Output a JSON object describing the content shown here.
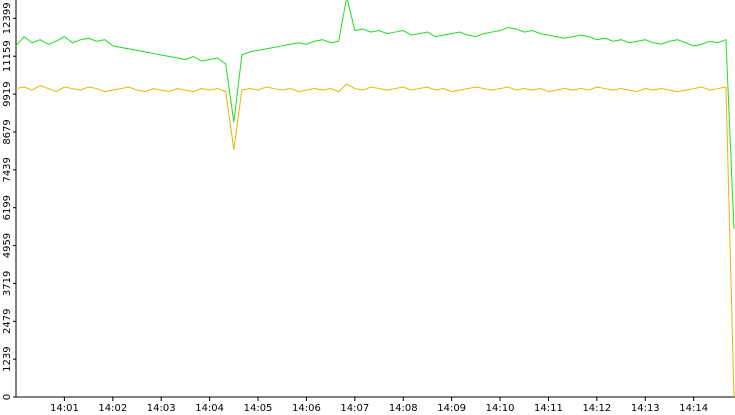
{
  "chart_data": {
    "type": "line",
    "categories": [
      null,
      null,
      null,
      null,
      null,
      null,
      "14:01",
      null,
      null,
      null,
      null,
      null,
      "14:02",
      null,
      null,
      null,
      null,
      null,
      "14:03",
      null,
      null,
      null,
      null,
      null,
      "14:04",
      null,
      null,
      null,
      null,
      null,
      "14:05",
      null,
      null,
      null,
      null,
      null,
      "14:06",
      null,
      null,
      null,
      null,
      null,
      "14:07",
      null,
      null,
      null,
      null,
      null,
      "14:08",
      null,
      null,
      null,
      null,
      null,
      "14:09",
      null,
      null,
      null,
      null,
      null,
      "14:10",
      null,
      null,
      null,
      null,
      null,
      "14:11",
      null,
      null,
      null,
      null,
      null,
      "14:12",
      null,
      null,
      null,
      null,
      null,
      "14:13",
      null,
      null,
      null,
      null,
      null,
      "14:14",
      null,
      null,
      null,
      null,
      null
    ],
    "series": [
      {
        "color": "#22dd22",
        "values": [
          11500,
          11800,
          11600,
          11700,
          11550,
          11650,
          11800,
          11600,
          11700,
          11750,
          11650,
          11700,
          11500,
          11450,
          11400,
          11350,
          11300,
          11250,
          11200,
          11150,
          11100,
          11050,
          11150,
          11000,
          11050,
          11100,
          10900,
          9000,
          11200,
          11300,
          11350,
          11400,
          11450,
          11500,
          11550,
          11600,
          11550,
          11650,
          11700,
          11600,
          11650,
          13100,
          12000,
          12050,
          11950,
          12000,
          11900,
          11950,
          12000,
          11850,
          11900,
          11950,
          11800,
          11850,
          11900,
          11950,
          11850,
          11800,
          11900,
          11950,
          12000,
          12100,
          12050,
          11950,
          12000,
          11900,
          11850,
          11800,
          11750,
          11800,
          11850,
          11800,
          11700,
          11750,
          11650,
          11700,
          11600,
          11650,
          11700,
          11600,
          11550,
          11650,
          11700,
          11600,
          11500,
          11550,
          11650,
          11600,
          11700,
          5500
        ]
      },
      {
        "color": "#e6b800",
        "values": [
          10100,
          10150,
          10050,
          10200,
          10100,
          10000,
          10150,
          10100,
          10050,
          10150,
          10100,
          10000,
          10050,
          10100,
          10150,
          10050,
          10000,
          10100,
          10050,
          10000,
          10100,
          10050,
          10000,
          10100,
          10050,
          10100,
          10000,
          8100,
          10050,
          10100,
          10050,
          10150,
          10100,
          10050,
          10100,
          10000,
          10050,
          10100,
          10050,
          10100,
          10000,
          10250,
          10100,
          10050,
          10150,
          10100,
          10050,
          10100,
          10150,
          10050,
          10100,
          10150,
          10050,
          10100,
          10000,
          10050,
          10100,
          10150,
          10100,
          10050,
          10100,
          10150,
          10050,
          10100,
          10050,
          10100,
          10000,
          10050,
          10100,
          10050,
          10100,
          10050,
          10150,
          10100,
          10050,
          10100,
          10050,
          10000,
          10100,
          10050,
          10100,
          10050,
          10000,
          10050,
          10100,
          10150,
          10050,
          10100,
          10150,
          0
        ]
      }
    ],
    "ylim": [
      0,
      13000
    ],
    "yticks": [
      0,
      1239,
      2479,
      3719,
      4959,
      6199,
      7439,
      8679,
      9919,
      11159,
      12399
    ]
  }
}
